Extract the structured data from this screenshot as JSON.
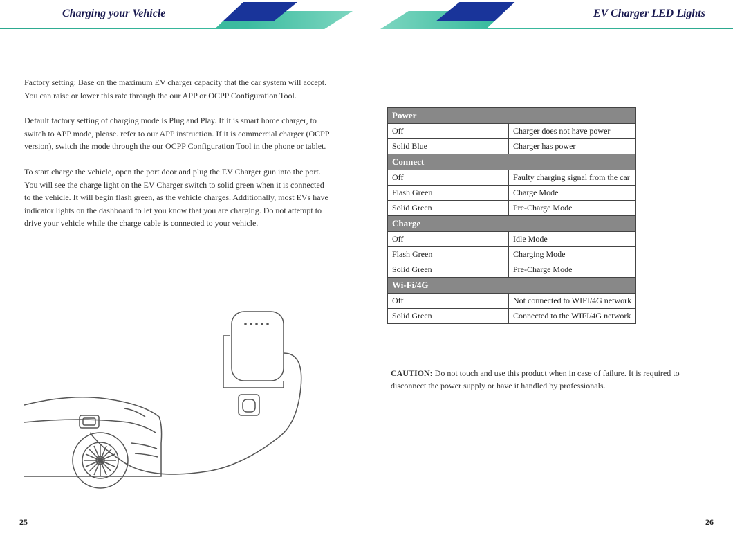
{
  "left": {
    "title": "Charging your Vehicle",
    "para1": "Factory setting: Base on the maximum EV charger capacity that the car system will accept. You can raise or lower this rate through the our APP or OCPP Configuration Tool.",
    "para2": "Default factory setting of charging mode is Plug and Play. If it is smart home charger, to switch to APP mode, please. refer to our APP instruction. If it is commercial charger (OCPP version), switch the mode through the our OCPP Configuration Tool in the phone or tablet.",
    "para3": "To start charge the vehicle, open the port door and plug the EV Charger gun into the port. You will see the charge light on the EV Charger switch to solid green when it is connected to the vehicle. It will begin flash green, as the vehicle charges. Additionally, most EVs have indicator lights on the dashboard to let you know that you are charging. Do not attempt to drive your vehicle while the charge cable is connected to your vehicle.",
    "page_num": "25"
  },
  "right": {
    "title": "EV Charger LED Lights",
    "sections": [
      {
        "name": "Power",
        "rows": [
          {
            "state": "Off",
            "meaning": "Charger does not have power"
          },
          {
            "state": "Solid Blue",
            "meaning": "Charger has power"
          }
        ]
      },
      {
        "name": "Connect",
        "rows": [
          {
            "state": "Off",
            "meaning": "Faulty charging signal from the car"
          },
          {
            "state": "Flash Green",
            "meaning": "Charge Mode"
          },
          {
            "state": "Solid Green",
            "meaning": "Pre-Charge Mode"
          }
        ]
      },
      {
        "name": "Charge",
        "rows": [
          {
            "state": "Off",
            "meaning": "Idle Mode"
          },
          {
            "state": "Flash Green",
            "meaning": "Charging Mode"
          },
          {
            "state": "Solid Green",
            "meaning": "Pre-Charge Mode"
          }
        ]
      },
      {
        "name": "Wi-Fi/4G",
        "rows": [
          {
            "state": "Off",
            "meaning": "Not connected to WIFI/4G network"
          },
          {
            "state": "Solid Green",
            "meaning": "Connected to the WIFI/4G network"
          }
        ]
      }
    ],
    "caution_label": "CAUTION:",
    "caution_text": " Do not touch and use this product when in case of failure. It is required to disconnect the power supply or have it handled by professionals.",
    "page_num": "26"
  },
  "colors": {
    "brand_dark": "#19349a",
    "brand_teal": "#2ba88e",
    "table_header_bg": "#888888",
    "text": "#333333"
  }
}
